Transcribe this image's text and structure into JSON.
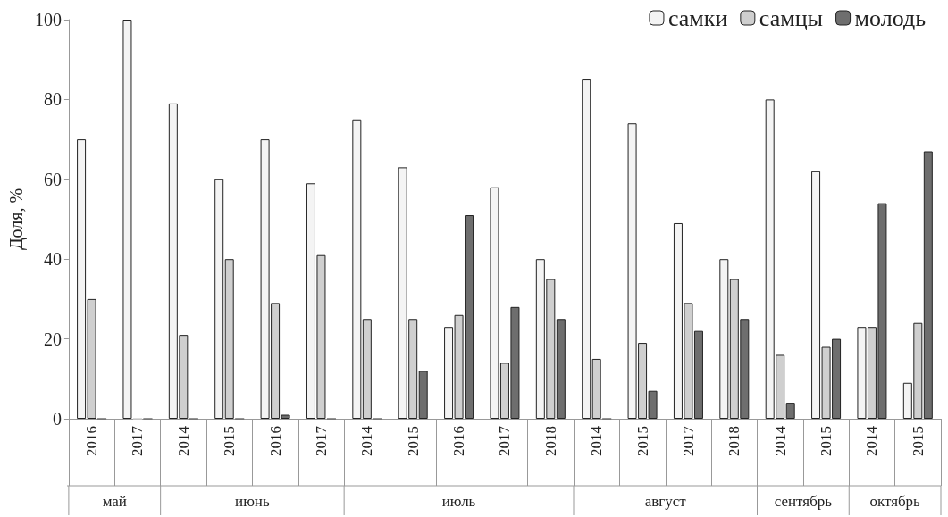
{
  "chart_data": {
    "type": "bar",
    "ylabel": "Доля, %",
    "categories": [
      "2016",
      "2017",
      "2014",
      "2015",
      "2016",
      "2017",
      "2014",
      "2015",
      "2016",
      "2017",
      "2018",
      "2014",
      "2015",
      "2017",
      "2018",
      "2014",
      "2015",
      "2014",
      "2015"
    ],
    "series": [
      {
        "name": "самки",
        "color": "#f4f4f4",
        "values": [
          70,
          100,
          79,
          60,
          70,
          59,
          75,
          63,
          23,
          58,
          40,
          85,
          74,
          49,
          40,
          80,
          62,
          23,
          9
        ]
      },
      {
        "name": "самцы",
        "color": "#cfcfcf",
        "values": [
          30,
          0,
          21,
          40,
          29,
          41,
          25,
          25,
          26,
          14,
          35,
          15,
          19,
          29,
          35,
          16,
          18,
          23,
          24
        ]
      },
      {
        "name": "молодь",
        "color": "#6e6e6e",
        "values": [
          0,
          0,
          0,
          0,
          1,
          0,
          0,
          12,
          51,
          28,
          25,
          0,
          7,
          22,
          25,
          4,
          20,
          54,
          67
        ]
      }
    ],
    "annotations": [
      "май",
      "июнь",
      "июль",
      "август",
      "сентябрь",
      "октябрь"
    ],
    "ylim": [
      0,
      100
    ],
    "yticks": [
      0,
      20,
      40,
      60,
      80,
      100
    ],
    "grid": false,
    "legend": "top right"
  }
}
